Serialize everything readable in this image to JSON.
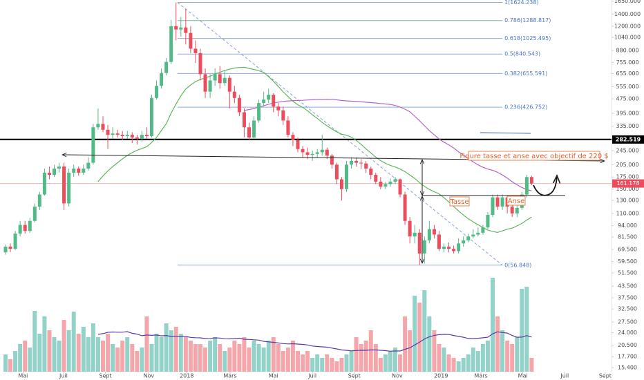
{
  "chart_data": {
    "type": "candlestick",
    "log_scale": true,
    "xlim": [
      -1.135,
      124.4
    ],
    "ylim": [
      14.6,
      1675
    ],
    "xticks": [
      {
        "value": 3.6,
        "label": "Mai"
      },
      {
        "value": 11.9,
        "label": "Juil"
      },
      {
        "value": 20.5,
        "label": "Sept"
      },
      {
        "value": 29.4,
        "label": "Nov"
      },
      {
        "value": 37.2,
        "label": "2018"
      },
      {
        "value": 46.1,
        "label": "Mars"
      },
      {
        "value": 55.0,
        "label": "Mai"
      },
      {
        "value": 63.0,
        "label": "Juil"
      },
      {
        "value": 71.6,
        "label": "Sept"
      },
      {
        "value": 80.4,
        "label": "Nov"
      },
      {
        "value": 89.4,
        "label": "2019"
      },
      {
        "value": 97.6,
        "label": "Mars"
      },
      {
        "value": 106.2,
        "label": "Mai"
      },
      {
        "value": 114.8,
        "label": "Juil"
      },
      {
        "value": 123.1,
        "label": "Sept"
      }
    ],
    "yticks": [
      {
        "value": 1650,
        "label": "1650.000"
      },
      {
        "value": 1400,
        "label": "1400.000"
      },
      {
        "value": 1200,
        "label": "1200.000"
      },
      {
        "value": 1040,
        "label": "1040.000"
      },
      {
        "value": 880,
        "label": "880.000"
      },
      {
        "value": 755,
        "label": "755.000"
      },
      {
        "value": 655,
        "label": "655.000"
      },
      {
        "value": 555,
        "label": "555.000"
      },
      {
        "value": 475,
        "label": "475.000"
      },
      {
        "value": 395,
        "label": "395.000"
      },
      {
        "value": 335,
        "label": "335.000"
      },
      {
        "value": 245,
        "label": "245.000"
      },
      {
        "value": 205,
        "label": "205.000"
      },
      {
        "value": 175,
        "label": "175.000"
      },
      {
        "value": 150,
        "label": "150.000"
      },
      {
        "value": 130,
        "label": "130.000"
      },
      {
        "value": 110,
        "label": "110.000"
      },
      {
        "value": 94,
        "label": "94.000"
      },
      {
        "value": 81.5,
        "label": "81.500"
      },
      {
        "value": 69.5,
        "label": "69.500"
      },
      {
        "value": 59.5,
        "label": "59.500"
      },
      {
        "value": 51.5,
        "label": "51.500"
      },
      {
        "value": 43.5,
        "label": "43.500"
      },
      {
        "value": 37.5,
        "label": "37.500"
      },
      {
        "value": 32.5,
        "label": "32.500"
      },
      {
        "value": 27.5,
        "label": "27.500"
      },
      {
        "value": 24,
        "label": "24.000"
      },
      {
        "value": 20.5,
        "label": "20.500"
      },
      {
        "value": 17.7,
        "label": "17.700"
      },
      {
        "value": 15.4,
        "label": "15.400"
      }
    ],
    "up_color": "#53b987",
    "down_color": "#eb4d5c",
    "volume_up_color": "#93d2c8",
    "volume_down_color": "#f5a6aa",
    "open": [
      67,
      72,
      70,
      85,
      95,
      88,
      100,
      120,
      140,
      185,
      180,
      195,
      200,
      125,
      185,
      195,
      185,
      195,
      210,
      330,
      345,
      320,
      300,
      305,
      300,
      295,
      300,
      290,
      285,
      300,
      295,
      480,
      560,
      660,
      760,
      1200,
      1150,
      1180,
      1100,
      900,
      850,
      650,
      520,
      600,
      650,
      580,
      620,
      520,
      480,
      400,
      330,
      290,
      360,
      450,
      470,
      500,
      430,
      410,
      360,
      300,
      280,
      250,
      240,
      232,
      235,
      240,
      248,
      230,
      205,
      170,
      150,
      205,
      215,
      210,
      208,
      195,
      180,
      165,
      155,
      160,
      165,
      170,
      140,
      100,
      82,
      86,
      66,
      78,
      90,
      84,
      70,
      72,
      70,
      68,
      75,
      78,
      82,
      84,
      86,
      92,
      108,
      135,
      120,
      135,
      120,
      110,
      118,
      140,
      175
    ],
    "high": [
      74,
      75,
      88,
      100,
      100,
      104,
      125,
      145,
      195,
      200,
      205,
      210,
      210,
      195,
      205,
      200,
      205,
      225,
      345,
      420,
      380,
      340,
      330,
      320,
      315,
      315,
      310,
      300,
      315,
      330,
      500,
      600,
      700,
      800,
      1300,
      1624.238,
      1350,
      1500,
      1200,
      1000,
      900,
      700,
      650,
      700,
      720,
      680,
      640,
      560,
      500,
      420,
      350,
      380,
      470,
      520,
      540,
      510,
      450,
      430,
      380,
      310,
      290,
      260,
      255,
      245,
      250,
      300,
      255,
      235,
      210,
      175,
      215,
      225,
      225,
      220,
      215,
      200,
      185,
      175,
      165,
      172,
      175,
      172,
      145,
      105,
      95,
      90,
      82,
      100,
      95,
      88,
      75,
      76,
      73,
      80,
      82,
      85,
      90,
      92,
      95,
      112,
      140,
      140,
      140,
      138,
      125,
      125,
      145,
      180,
      178
    ],
    "low": [
      65,
      67,
      69,
      82,
      85,
      86,
      98,
      115,
      138,
      170,
      175,
      185,
      115,
      120,
      175,
      178,
      180,
      190,
      205,
      320,
      310,
      250,
      285,
      290,
      280,
      285,
      270,
      265,
      275,
      285,
      290,
      470,
      540,
      640,
      740,
      1000,
      1050,
      950,
      850,
      750,
      600,
      480,
      480,
      560,
      540,
      560,
      420,
      450,
      380,
      290,
      280,
      285,
      350,
      430,
      450,
      400,
      380,
      340,
      290,
      260,
      240,
      225,
      220,
      215,
      225,
      230,
      220,
      195,
      160,
      130,
      145,
      195,
      200,
      195,
      185,
      170,
      160,
      150,
      150,
      155,
      160,
      135,
      95,
      75,
      75,
      57,
      58,
      75,
      80,
      68,
      67,
      67,
      66,
      66,
      72,
      76,
      80,
      82,
      84,
      90,
      105,
      115,
      115,
      110,
      105,
      105,
      115,
      135,
      158
    ],
    "close": [
      72,
      70,
      85,
      95,
      88,
      100,
      120,
      140,
      185,
      180,
      195,
      200,
      125,
      185,
      195,
      185,
      195,
      210,
      330,
      345,
      320,
      300,
      305,
      300,
      295,
      300,
      290,
      285,
      300,
      295,
      480,
      560,
      660,
      760,
      1200,
      1150,
      1180,
      1100,
      900,
      850,
      650,
      520,
      600,
      650,
      580,
      620,
      520,
      480,
      400,
      330,
      290,
      360,
      450,
      470,
      500,
      430,
      410,
      360,
      300,
      280,
      250,
      240,
      232,
      235,
      240,
      248,
      230,
      205,
      170,
      150,
      205,
      215,
      210,
      208,
      195,
      180,
      165,
      155,
      160,
      165,
      170,
      140,
      100,
      82,
      86,
      66,
      78,
      90,
      84,
      70,
      72,
      70,
      68,
      75,
      78,
      82,
      84,
      86,
      92,
      108,
      135,
      120,
      135,
      120,
      110,
      118,
      140,
      175,
      161.178
    ],
    "volume": [
      25,
      18,
      30,
      40,
      45,
      35,
      88,
      55,
      80,
      60,
      50,
      45,
      75,
      60,
      87,
      55,
      65,
      50,
      70,
      50,
      45,
      55,
      40,
      35,
      45,
      50,
      40,
      30,
      35,
      80,
      40,
      55,
      50,
      70,
      60,
      65,
      55,
      50,
      45,
      40,
      40,
      35,
      45,
      50,
      40,
      30,
      35,
      45,
      40,
      50,
      35,
      45,
      40,
      35,
      45,
      50,
      40,
      30,
      35,
      45,
      30,
      25,
      30,
      20,
      25,
      20,
      25,
      20,
      15,
      20,
      25,
      30,
      50,
      40,
      45,
      60,
      40,
      20,
      25,
      30,
      35,
      25,
      80,
      60,
      110,
      100,
      118,
      80,
      60,
      40,
      35,
      25,
      20,
      15,
      20,
      25,
      35,
      30,
      40,
      45,
      136,
      80,
      60,
      45,
      40,
      50,
      120,
      123,
      20
    ],
    "indicators": [
      {
        "type": "sma",
        "source": "close",
        "period": 20,
        "color": "#5cb85c"
      },
      {
        "type": "sma",
        "source": "close",
        "period": 50,
        "color": "#b266c8"
      },
      {
        "type": "sma",
        "source": "volume",
        "period": 20,
        "color": "#5a3aa8"
      }
    ],
    "fib_x": [
      35.3,
      102
    ],
    "fib_levels": [
      {
        "value": 1624.238,
        "label": "1(1624.238)"
      },
      {
        "value": 1288.817,
        "label": "0.786(1288.817)"
      },
      {
        "value": 1025.495,
        "label": "0.618(1025.495)"
      },
      {
        "value": 840.543,
        "label": "0.5(840.543)"
      },
      {
        "value": 655.591,
        "label": "0.382(655.591)"
      },
      {
        "value": 426.752,
        "label": "0.236(426.752)"
      },
      {
        "value": 56.848,
        "label": "0(56.848)"
      }
    ],
    "support_level": 282.519,
    "annotations": [
      "Figure tasse et anse avec objectif de 220 $",
      "Tasse",
      "Anse"
    ]
  }
}
